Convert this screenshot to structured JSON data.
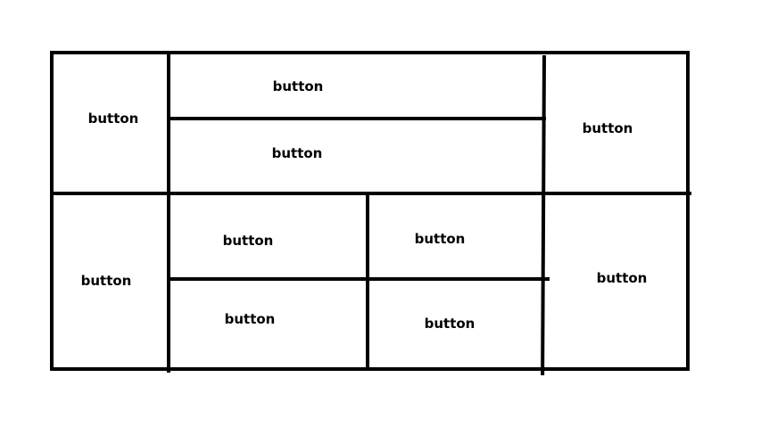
{
  "wireframe": {
    "line_color": "#000000",
    "background": "#ffffff",
    "buttons": [
      {
        "id": "top-left",
        "label": "button"
      },
      {
        "id": "top-middle-upper",
        "label": "button"
      },
      {
        "id": "top-middle-lower",
        "label": "button"
      },
      {
        "id": "top-right",
        "label": "button"
      },
      {
        "id": "bottom-left",
        "label": "button"
      },
      {
        "id": "bottom-center-left-upper",
        "label": "button"
      },
      {
        "id": "bottom-center-right-upper",
        "label": "button"
      },
      {
        "id": "bottom-center-left-lower",
        "label": "button"
      },
      {
        "id": "bottom-center-right-lower",
        "label": "button"
      },
      {
        "id": "bottom-right",
        "label": "button"
      }
    ]
  }
}
